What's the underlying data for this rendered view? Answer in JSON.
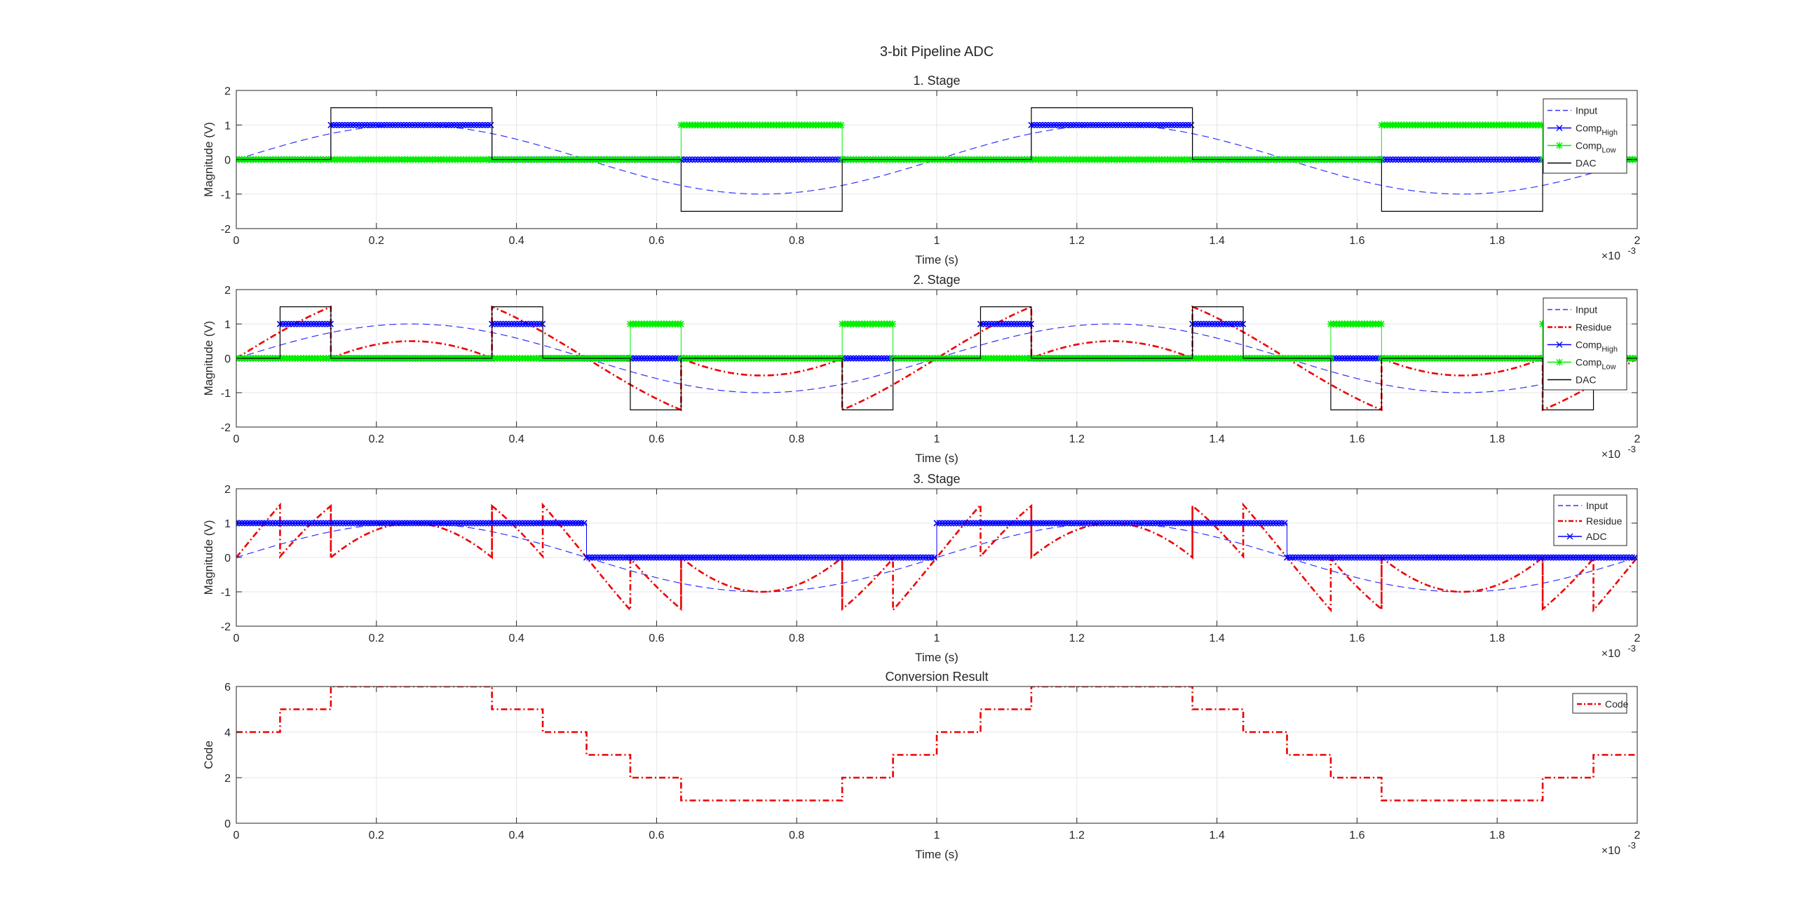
{
  "figure": {
    "title": "3-bit Pipeline ADC"
  },
  "colors": {
    "input": "#3333ff",
    "comp_high": "#0000ff",
    "comp_low": "#00ee00",
    "dac": "#000000",
    "residue": "#ee0000",
    "code": "#ee0000",
    "grid": "#e6e6e6",
    "axis": "#262626"
  },
  "chart_data": [
    {
      "type": "line",
      "title": "1. Stage",
      "xlabel": "Time (s)",
      "ylabel": "Magnitude (V)",
      "xlim": [
        0,
        0.002
      ],
      "ylim": [
        -2,
        2
      ],
      "x_ticks": [
        0,
        0.2,
        0.4,
        0.6,
        0.8,
        1,
        1.2,
        1.4,
        1.6,
        1.8,
        2
      ],
      "x_ticks_unit": "10^-3",
      "x_exponent_label": "×10",
      "x_exponent_sup": "-3",
      "y_ticks": [
        -2,
        -1,
        0,
        1,
        2
      ],
      "grid": true,
      "legend_position": "top-right",
      "legend": [
        {
          "name": "Input",
          "sub": ""
        },
        {
          "name": "Comp",
          "sub": "High"
        },
        {
          "name": "Comp",
          "sub": "Low"
        },
        {
          "name": "DAC",
          "sub": ""
        }
      ],
      "series": [
        {
          "name": "Input",
          "function": "sin(2*pi*1000*t)",
          "style": "dashed",
          "color": "#3333ff"
        },
        {
          "name": "CompHigh",
          "style": "marker-x",
          "color": "#0000ff",
          "steps": [
            [
              0,
              0
            ],
            [
              0.000135,
              1
            ],
            [
              0.000365,
              0
            ],
            [
              0.000635,
              0
            ],
            [
              0.000865,
              0
            ],
            [
              0.001135,
              1
            ],
            [
              0.001365,
              0
            ],
            [
              0.001635,
              0
            ],
            [
              0.001865,
              0
            ]
          ],
          "x_end": 0.002
        },
        {
          "name": "CompLow",
          "style": "marker-star",
          "color": "#00ee00",
          "steps": [
            [
              0,
              0
            ],
            [
              0.000635,
              1
            ],
            [
              0.000865,
              0
            ],
            [
              0.001635,
              1
            ],
            [
              0.001865,
              0
            ]
          ],
          "x_end": 0.002
        },
        {
          "name": "DAC",
          "style": "solid",
          "color": "#000000",
          "steps": [
            [
              0,
              0
            ],
            [
              0.000135,
              1.5
            ],
            [
              0.000365,
              0
            ],
            [
              0.000635,
              -1.5
            ],
            [
              0.000865,
              0
            ],
            [
              0.001135,
              1.5
            ],
            [
              0.001365,
              0
            ],
            [
              0.001635,
              -1.5
            ],
            [
              0.001865,
              0
            ]
          ],
          "x_end": 0.002
        }
      ]
    },
    {
      "type": "line",
      "title": "2. Stage",
      "xlabel": "Time (s)",
      "ylabel": "Magnitude (V)",
      "xlim": [
        0,
        0.002
      ],
      "ylim": [
        -2,
        2
      ],
      "x_ticks": [
        0,
        0.2,
        0.4,
        0.6,
        0.8,
        1,
        1.2,
        1.4,
        1.6,
        1.8,
        2
      ],
      "x_exponent_label": "×10",
      "x_exponent_sup": "-3",
      "y_ticks": [
        -2,
        -1,
        0,
        1,
        2
      ],
      "grid": true,
      "legend_position": "top-right",
      "legend": [
        {
          "name": "Input",
          "sub": ""
        },
        {
          "name": "Residue",
          "sub": ""
        },
        {
          "name": "Comp",
          "sub": "High"
        },
        {
          "name": "Comp",
          "sub": "Low"
        },
        {
          "name": "DAC",
          "sub": ""
        }
      ],
      "series": [
        {
          "name": "Input",
          "function": "sin(2*pi*1000*t)",
          "style": "dashed",
          "color": "#3333ff"
        },
        {
          "name": "Residue",
          "function": "2*sin(2*pi*1000*t) - DAC1",
          "style": "dashdot",
          "color": "#ee0000"
        },
        {
          "name": "CompHigh",
          "style": "marker-x",
          "color": "#0000ff",
          "steps": [
            [
              0,
              0
            ],
            [
              6.25e-05,
              1
            ],
            [
              0.000135,
              0
            ],
            [
              0.000365,
              1
            ],
            [
              0.0004375,
              0
            ],
            [
              0.0005625,
              0
            ],
            [
              0.000635,
              0
            ],
            [
              0.000865,
              0
            ],
            [
              0.0009375,
              0
            ],
            [
              0.0010625,
              1
            ],
            [
              0.001135,
              0
            ],
            [
              0.001365,
              1
            ],
            [
              0.0014375,
              0
            ],
            [
              0.0015625,
              0
            ],
            [
              0.001635,
              0
            ],
            [
              0.001865,
              0
            ],
            [
              0.0019375,
              0
            ]
          ],
          "x_end": 0.002
        },
        {
          "name": "CompLow",
          "style": "marker-star",
          "color": "#00ee00",
          "steps": [
            [
              0,
              0
            ],
            [
              0.0005625,
              1
            ],
            [
              0.000635,
              0
            ],
            [
              0.000865,
              1
            ],
            [
              0.0009375,
              0
            ],
            [
              0.0015625,
              1
            ],
            [
              0.001635,
              0
            ],
            [
              0.001865,
              1
            ],
            [
              0.0019375,
              0
            ]
          ],
          "x_end": 0.002
        },
        {
          "name": "DAC",
          "style": "solid",
          "color": "#000000",
          "steps": [
            [
              0,
              0
            ],
            [
              6.25e-05,
              1.5
            ],
            [
              0.000135,
              0
            ],
            [
              0.000365,
              1.5
            ],
            [
              0.0004375,
              0
            ],
            [
              0.0005625,
              -1.5
            ],
            [
              0.000635,
              0
            ],
            [
              0.000865,
              -1.5
            ],
            [
              0.0009375,
              0
            ],
            [
              0.0010625,
              1.5
            ],
            [
              0.001135,
              0
            ],
            [
              0.001365,
              1.5
            ],
            [
              0.0014375,
              0
            ],
            [
              0.0015625,
              -1.5
            ],
            [
              0.001635,
              0
            ],
            [
              0.001865,
              -1.5
            ],
            [
              0.0019375,
              0
            ]
          ],
          "x_end": 0.002
        }
      ]
    },
    {
      "type": "line",
      "title": "3. Stage",
      "xlabel": "Time (s)",
      "ylabel": "Magnitude (V)",
      "xlim": [
        0,
        0.002
      ],
      "ylim": [
        -2,
        2
      ],
      "x_ticks": [
        0,
        0.2,
        0.4,
        0.6,
        0.8,
        1,
        1.2,
        1.4,
        1.6,
        1.8,
        2
      ],
      "x_exponent_label": "×10",
      "x_exponent_sup": "-3",
      "y_ticks": [
        -2,
        -1,
        0,
        1,
        2
      ],
      "grid": true,
      "legend_position": "top-right",
      "legend": [
        {
          "name": "Input",
          "sub": ""
        },
        {
          "name": "Residue",
          "sub": ""
        },
        {
          "name": "ADC",
          "sub": ""
        }
      ],
      "series": [
        {
          "name": "Input",
          "function": "sin(2*pi*1000*t)",
          "style": "dashed",
          "color": "#3333ff"
        },
        {
          "name": "Residue",
          "function": "2*Residue2 - DAC2",
          "style": "dashdot",
          "color": "#ee0000"
        },
        {
          "name": "ADC",
          "style": "marker-x",
          "color": "#0000ff",
          "steps": [
            [
              0,
              1
            ],
            [
              0.0005,
              0
            ],
            [
              0.001,
              1
            ],
            [
              0.0015,
              0
            ]
          ],
          "x_end": 0.002
        }
      ]
    },
    {
      "type": "line",
      "title": "Conversion Result",
      "xlabel": "Time (s)",
      "ylabel": "Code",
      "xlim": [
        0,
        0.002
      ],
      "ylim": [
        0,
        6
      ],
      "x_ticks": [
        0,
        0.2,
        0.4,
        0.6,
        0.8,
        1,
        1.2,
        1.4,
        1.6,
        1.8,
        2
      ],
      "x_exponent_label": "×10",
      "x_exponent_sup": "-3",
      "y_ticks": [
        0,
        2,
        4,
        6
      ],
      "grid": true,
      "legend_position": "top-right",
      "legend": [
        {
          "name": "Code",
          "sub": ""
        }
      ],
      "series": [
        {
          "name": "Code",
          "style": "dashdot",
          "color": "#ee0000",
          "steps": [
            [
              0,
              4
            ],
            [
              6.25e-05,
              5
            ],
            [
              0.000135,
              6
            ],
            [
              0.000365,
              5
            ],
            [
              0.0004375,
              4
            ],
            [
              0.0005,
              3
            ],
            [
              0.0005625,
              2
            ],
            [
              0.000635,
              1
            ],
            [
              0.000865,
              2
            ],
            [
              0.0009375,
              3
            ],
            [
              0.001,
              4
            ],
            [
              0.0010625,
              5
            ],
            [
              0.001135,
              6
            ],
            [
              0.001365,
              5
            ],
            [
              0.0014375,
              4
            ],
            [
              0.0015,
              3
            ],
            [
              0.0015625,
              2
            ],
            [
              0.001635,
              1
            ],
            [
              0.001865,
              2
            ],
            [
              0.0019375,
              3
            ]
          ],
          "x_end": 0.002
        }
      ]
    }
  ]
}
